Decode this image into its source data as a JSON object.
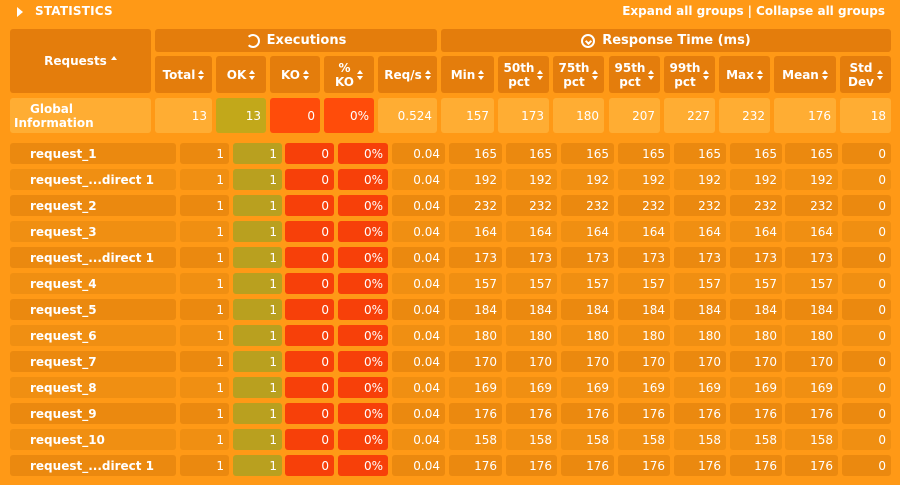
{
  "header": {
    "title": "STATISTICS",
    "expand_all": "Expand all groups",
    "separator": "|",
    "collapse_all": "Collapse all groups"
  },
  "groups": {
    "executions": "Executions",
    "response_time": "Response Time (ms)"
  },
  "columns": {
    "requests": "Requests",
    "total": "Total",
    "ok": "OK",
    "ko": "KO",
    "pct_ko_1": "%",
    "pct_ko_2": "KO",
    "req_s": "Req/s",
    "min": "Min",
    "p50_1": "50th",
    "p50_2": "pct",
    "p75_1": "75th",
    "p75_2": "pct",
    "p95_1": "95th",
    "p95_2": "pct",
    "p99_1": "99th",
    "p99_2": "pct",
    "max": "Max",
    "mean": "Mean",
    "std_1": "Std",
    "std_2": "Dev"
  },
  "global": {
    "name_1": "Global",
    "name_2": "Information",
    "values": [
      "13",
      "13",
      "0",
      "0%",
      "0.524",
      "157",
      "173",
      "180",
      "207",
      "227",
      "232",
      "176",
      "18"
    ]
  },
  "rows": [
    {
      "name": "request_1",
      "values": [
        "1",
        "1",
        "0",
        "0%",
        "0.04",
        "165",
        "165",
        "165",
        "165",
        "165",
        "165",
        "165",
        "0"
      ]
    },
    {
      "name": "request_...direct 1",
      "values": [
        "1",
        "1",
        "0",
        "0%",
        "0.04",
        "192",
        "192",
        "192",
        "192",
        "192",
        "192",
        "192",
        "0"
      ]
    },
    {
      "name": "request_2",
      "values": [
        "1",
        "1",
        "0",
        "0%",
        "0.04",
        "232",
        "232",
        "232",
        "232",
        "232",
        "232",
        "232",
        "0"
      ]
    },
    {
      "name": "request_3",
      "values": [
        "1",
        "1",
        "0",
        "0%",
        "0.04",
        "164",
        "164",
        "164",
        "164",
        "164",
        "164",
        "164",
        "0"
      ]
    },
    {
      "name": "request_...direct 1",
      "values": [
        "1",
        "1",
        "0",
        "0%",
        "0.04",
        "173",
        "173",
        "173",
        "173",
        "173",
        "173",
        "173",
        "0"
      ]
    },
    {
      "name": "request_4",
      "values": [
        "1",
        "1",
        "0",
        "0%",
        "0.04",
        "157",
        "157",
        "157",
        "157",
        "157",
        "157",
        "157",
        "0"
      ]
    },
    {
      "name": "request_5",
      "values": [
        "1",
        "1",
        "0",
        "0%",
        "0.04",
        "184",
        "184",
        "184",
        "184",
        "184",
        "184",
        "184",
        "0"
      ]
    },
    {
      "name": "request_6",
      "values": [
        "1",
        "1",
        "0",
        "0%",
        "0.04",
        "180",
        "180",
        "180",
        "180",
        "180",
        "180",
        "180",
        "0"
      ]
    },
    {
      "name": "request_7",
      "values": [
        "1",
        "1",
        "0",
        "0%",
        "0.04",
        "170",
        "170",
        "170",
        "170",
        "170",
        "170",
        "170",
        "0"
      ]
    },
    {
      "name": "request_8",
      "values": [
        "1",
        "1",
        "0",
        "0%",
        "0.04",
        "169",
        "169",
        "169",
        "169",
        "169",
        "169",
        "169",
        "0"
      ]
    },
    {
      "name": "request_9",
      "values": [
        "1",
        "1",
        "0",
        "0%",
        "0.04",
        "176",
        "176",
        "176",
        "176",
        "176",
        "176",
        "176",
        "0"
      ]
    },
    {
      "name": "request_10",
      "values": [
        "1",
        "1",
        "0",
        "0%",
        "0.04",
        "158",
        "158",
        "158",
        "158",
        "158",
        "158",
        "158",
        "0"
      ]
    },
    {
      "name": "request_...direct 1",
      "values": [
        "1",
        "1",
        "0",
        "0%",
        "0.04",
        "176",
        "176",
        "176",
        "176",
        "176",
        "176",
        "176",
        "0"
      ]
    }
  ]
}
